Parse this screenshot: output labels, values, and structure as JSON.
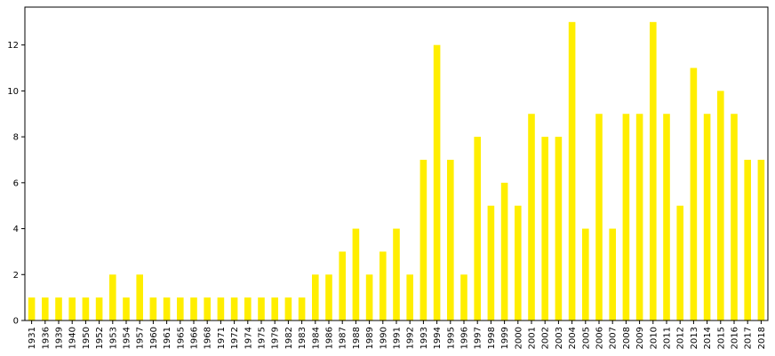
{
  "chart_data": {
    "type": "bar",
    "categories": [
      "1931",
      "1936",
      "1939",
      "1940",
      "1950",
      "1952",
      "1953",
      "1954",
      "1957",
      "1960",
      "1961",
      "1965",
      "1966",
      "1968",
      "1971",
      "1972",
      "1974",
      "1975",
      "1979",
      "1982",
      "1983",
      "1984",
      "1986",
      "1987",
      "1988",
      "1989",
      "1990",
      "1991",
      "1992",
      "1993",
      "1994",
      "1995",
      "1996",
      "1997",
      "1998",
      "1999",
      "2000",
      "2001",
      "2002",
      "2003",
      "2004",
      "2005",
      "2006",
      "2007",
      "2008",
      "2009",
      "2010",
      "2011",
      "2012",
      "2013",
      "2014",
      "2015",
      "2016",
      "2017",
      "2018"
    ],
    "values": [
      1,
      1,
      1,
      1,
      1,
      1,
      2,
      1,
      2,
      1,
      1,
      1,
      1,
      1,
      1,
      1,
      1,
      1,
      1,
      1,
      1,
      2,
      2,
      3,
      4,
      2,
      3,
      4,
      2,
      7,
      12,
      7,
      2,
      8,
      5,
      6,
      5,
      9,
      8,
      8,
      13,
      4,
      9,
      4,
      9,
      9,
      13,
      9,
      5,
      11,
      9,
      10,
      9,
      7,
      7
    ],
    "title": "",
    "xlabel": "",
    "ylabel": "",
    "ylim": [
      0,
      13.65
    ],
    "yticks": [
      0,
      2,
      4,
      6,
      8,
      10,
      12
    ],
    "bar_color": "#ffee00",
    "grid": false,
    "legend": "none"
  }
}
